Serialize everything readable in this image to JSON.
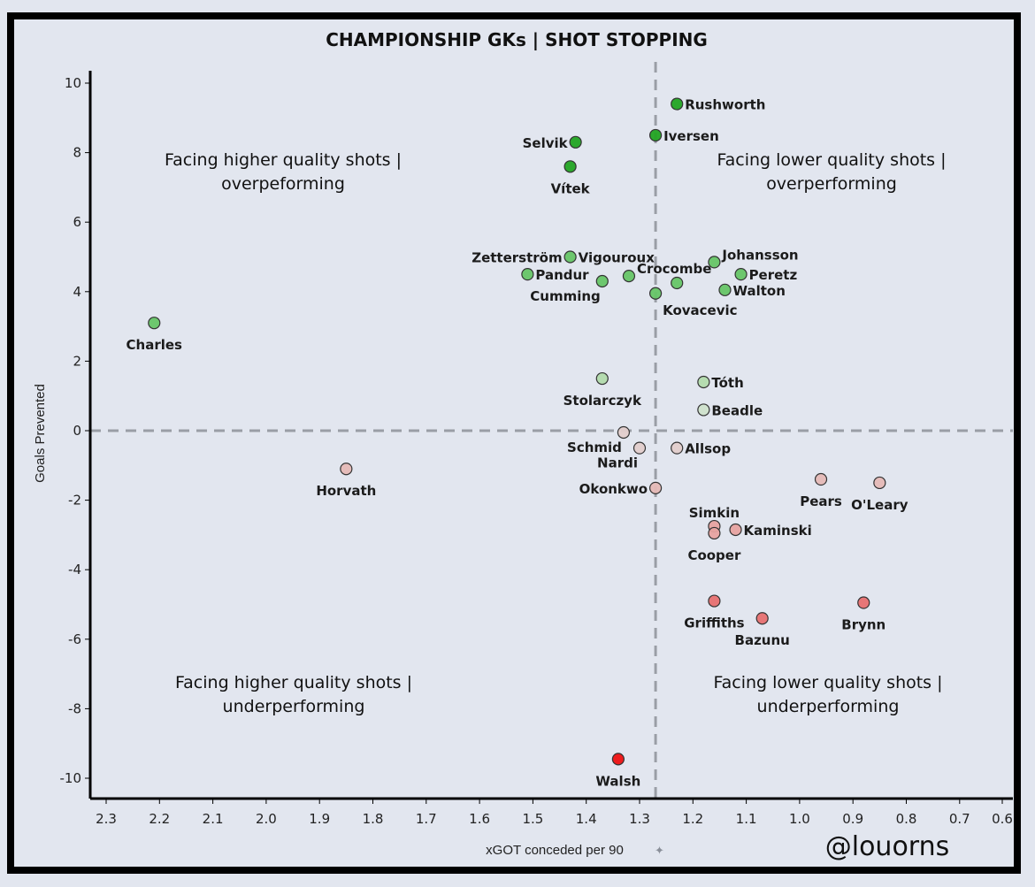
{
  "chart_data": {
    "type": "scatter",
    "title": "CHAMPIONSHIP GKs | SHOT STOPPING",
    "xlabel": "xGOT conceded per 90",
    "ylabel": "Goals Prevented",
    "xlim": [
      2.33,
      0.6
    ],
    "ylim": [
      -10.6,
      10.4
    ],
    "x_inverted": true,
    "x_ticks": [
      "2.3",
      "2.2",
      "2.1",
      "2.0",
      "1.9",
      "1.8",
      "1.7",
      "1.6",
      "1.5",
      "1.4",
      "1.3",
      "1.2",
      "1.1",
      "1.0",
      "0.9",
      "0.8",
      "0.7",
      "0.6"
    ],
    "y_ticks": [
      "10",
      "8",
      "6",
      "4",
      "2",
      "0",
      "-2",
      "-4",
      "-6",
      "-8",
      "-10"
    ],
    "grid": false,
    "reference_lines": {
      "x": 1.27,
      "y": 0
    },
    "quadrant_labels": [
      {
        "position": "top-left",
        "lines": [
          "Facing higher quality shots |",
          "overpeforming"
        ]
      },
      {
        "position": "top-right",
        "lines": [
          "Facing lower quality shots |",
          "overperforming"
        ]
      },
      {
        "position": "bottom-left",
        "lines": [
          "Facing higher quality shots |",
          "underperforming"
        ]
      },
      {
        "position": "bottom-right",
        "lines": [
          "Facing lower quality shots |",
          "underperforming"
        ]
      }
    ],
    "credit": "@louorns",
    "points": [
      {
        "name": "Rushworth",
        "x": 1.23,
        "y": 9.4,
        "label_pos": "right"
      },
      {
        "name": "Iversen",
        "x": 1.27,
        "y": 8.5,
        "label_pos": "right"
      },
      {
        "name": "Selvik",
        "x": 1.42,
        "y": 8.3,
        "label_pos": "left"
      },
      {
        "name": "Vítek",
        "x": 1.43,
        "y": 7.6,
        "label_pos": "below"
      },
      {
        "name": "Zetterström",
        "x": 1.43,
        "y": 5.0,
        "label_pos": "left"
      },
      {
        "name": "Vigouroux",
        "x": 1.43,
        "y": 5.0,
        "label_pos": "right"
      },
      {
        "name": "Pandur",
        "x": 1.51,
        "y": 4.5,
        "label_pos": "right"
      },
      {
        "name": "Cumming",
        "x": 1.37,
        "y": 4.3,
        "label_pos": "below-left"
      },
      {
        "name": "Crocombe",
        "x": 1.32,
        "y": 4.45,
        "label_pos": "right-up"
      },
      {
        "name": "",
        "x": 1.23,
        "y": 4.25,
        "label_pos": "none"
      },
      {
        "name": "Kovacevic",
        "x": 1.27,
        "y": 3.95,
        "label_pos": "below-right"
      },
      {
        "name": "Johansson",
        "x": 1.16,
        "y": 4.85,
        "label_pos": "right-up"
      },
      {
        "name": "Peretz",
        "x": 1.11,
        "y": 4.5,
        "label_pos": "right"
      },
      {
        "name": "Walton",
        "x": 1.14,
        "y": 4.05,
        "label_pos": "right"
      },
      {
        "name": "Charles",
        "x": 2.21,
        "y": 3.1,
        "label_pos": "below"
      },
      {
        "name": "Stolarczyk",
        "x": 1.37,
        "y": 1.5,
        "label_pos": "below"
      },
      {
        "name": "Tóth",
        "x": 1.18,
        "y": 1.4,
        "label_pos": "right"
      },
      {
        "name": "Beadle",
        "x": 1.18,
        "y": 0.6,
        "label_pos": "right"
      },
      {
        "name": "Schmid",
        "x": 1.33,
        "y": -0.05,
        "label_pos": "below-left"
      },
      {
        "name": "Nardi",
        "x": 1.3,
        "y": -0.5,
        "label_pos": "below-left"
      },
      {
        "name": "Allsop",
        "x": 1.23,
        "y": -0.5,
        "label_pos": "right"
      },
      {
        "name": "Horvath",
        "x": 1.85,
        "y": -1.1,
        "label_pos": "below"
      },
      {
        "name": "Okonkwo",
        "x": 1.27,
        "y": -1.65,
        "label_pos": "left"
      },
      {
        "name": "Pears",
        "x": 0.96,
        "y": -1.4,
        "label_pos": "below"
      },
      {
        "name": "O'Leary",
        "x": 0.85,
        "y": -1.5,
        "label_pos": "below"
      },
      {
        "name": "Simkin",
        "x": 1.16,
        "y": -2.75,
        "label_pos": "above"
      },
      {
        "name": "Cooper",
        "x": 1.16,
        "y": -2.95,
        "label_pos": "below"
      },
      {
        "name": "Kaminski",
        "x": 1.12,
        "y": -2.85,
        "label_pos": "right"
      },
      {
        "name": "Griffiths",
        "x": 1.16,
        "y": -4.9,
        "label_pos": "below"
      },
      {
        "name": "Bazunu",
        "x": 1.07,
        "y": -5.4,
        "label_pos": "below"
      },
      {
        "name": "Brynn",
        "x": 0.88,
        "y": -4.95,
        "label_pos": "below"
      },
      {
        "name": "Walsh",
        "x": 1.34,
        "y": -9.45,
        "label_pos": "below"
      }
    ]
  }
}
